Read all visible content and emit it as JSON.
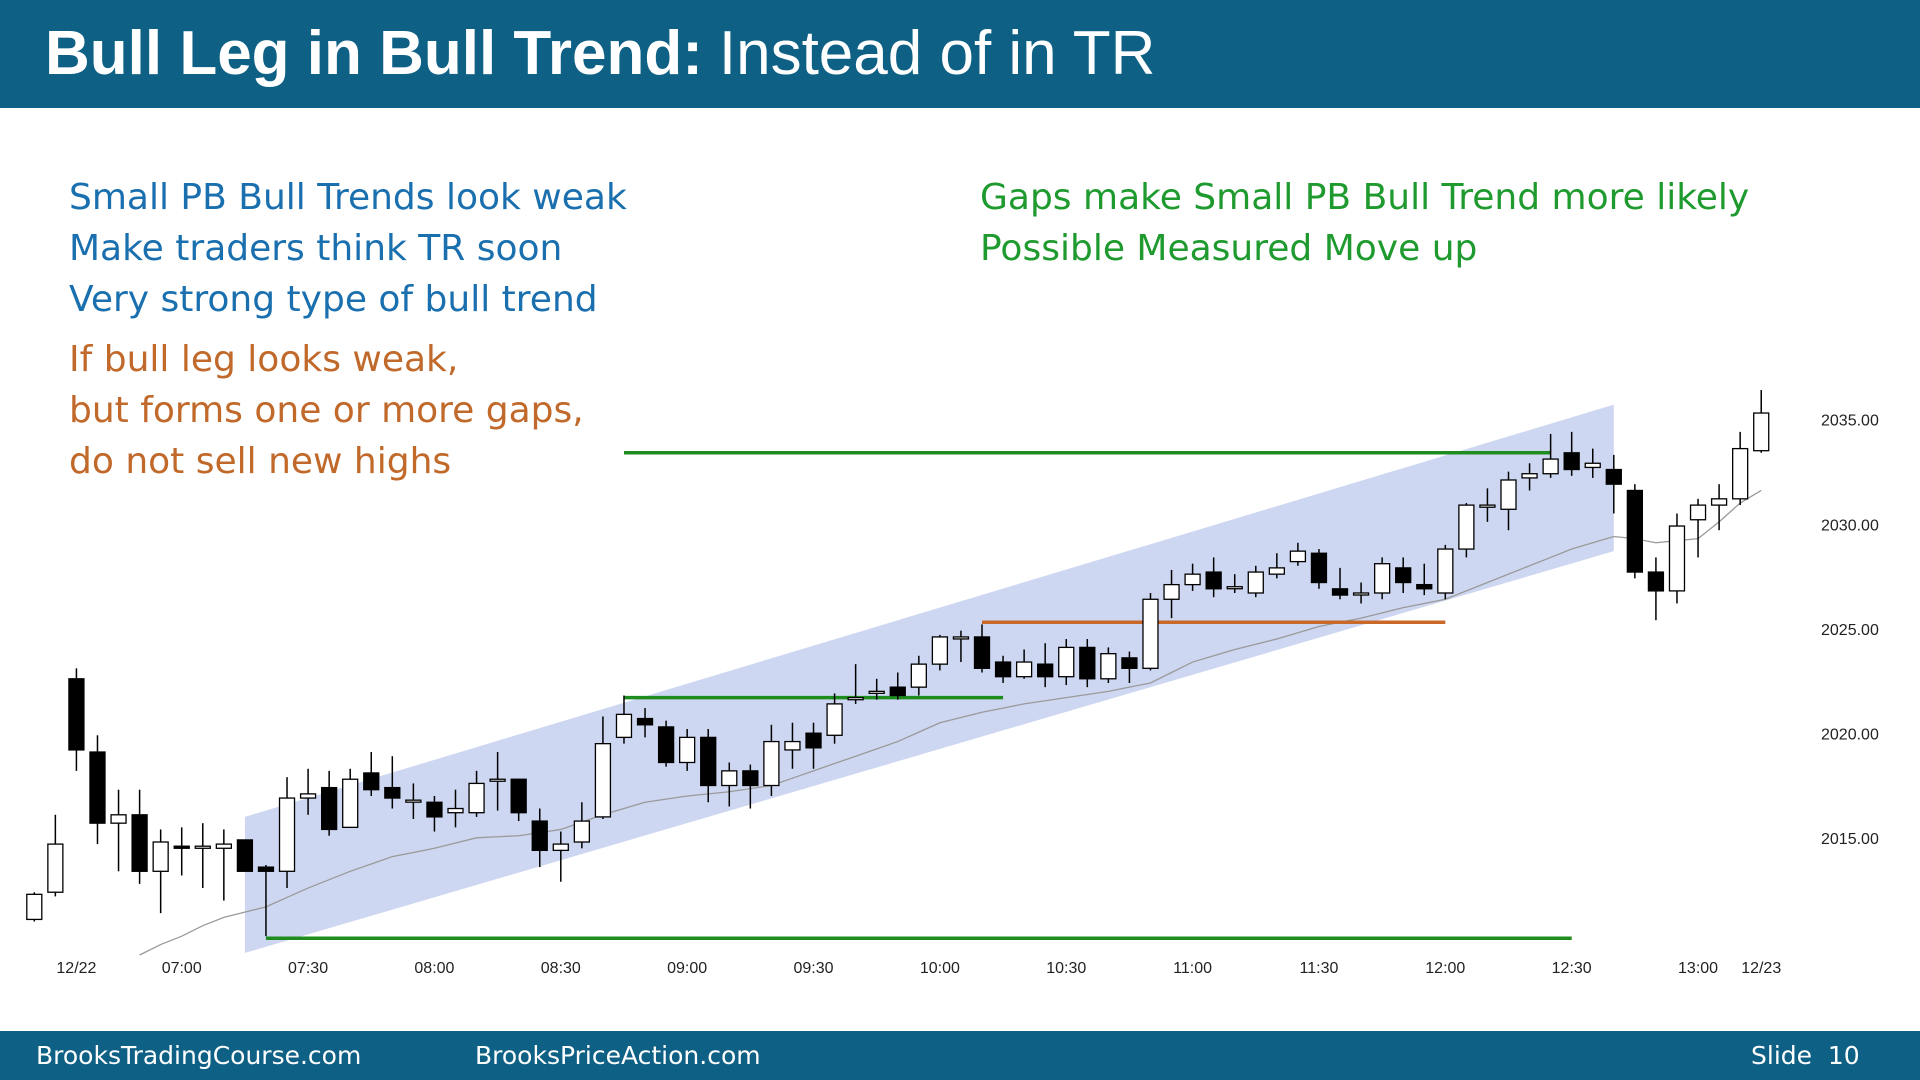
{
  "header": {
    "title_bold": "Bull Leg in Bull Trend:",
    "title_rest": "Instead of in TR"
  },
  "notes_left": [
    "Small PB Bull Trends look weak",
    "Make traders think TR soon",
    "Very strong type of bull trend"
  ],
  "notes_warning": [
    "If bull leg looks weak,",
    "but forms one or more gaps,",
    "do not sell new highs"
  ],
  "notes_right": [
    "Gaps make Small PB Bull Trend more likely",
    "Possible Measured Move up"
  ],
  "footer": {
    "left": "BrooksTradingCourse.com",
    "middle": "BrooksPriceAction.com",
    "slide": "Slide  10"
  },
  "chart_data": {
    "type": "candlestick",
    "categories": [
      null,
      null,
      "12/22",
      null,
      null,
      null,
      null,
      "07:00",
      null,
      null,
      null,
      null,
      null,
      "07:30",
      null,
      null,
      null,
      null,
      null,
      "08:00",
      null,
      null,
      null,
      null,
      null,
      "08:30",
      null,
      null,
      null,
      null,
      null,
      "09:00",
      null,
      null,
      null,
      null,
      null,
      "09:30",
      null,
      null,
      null,
      null,
      null,
      "10:00",
      null,
      null,
      null,
      null,
      null,
      "10:30",
      null,
      null,
      null,
      null,
      null,
      "11:00",
      null,
      null,
      null,
      null,
      null,
      "11:30",
      null,
      null,
      null,
      null,
      null,
      "12:00",
      null,
      null,
      null,
      null,
      null,
      "12:30",
      null,
      null,
      null,
      null,
      null,
      "13:00",
      null,
      null,
      "12/23"
    ],
    "open": [
      2011.2,
      2012.5,
      2022.7,
      2019.2,
      2015.8,
      2016.2,
      2013.5,
      2014.7,
      2014.6,
      2014.6,
      2015,
      2013.7,
      2013.5,
      2017,
      2017.5,
      2015.6,
      2018.2,
      2017.5,
      2016.9,
      2016.8,
      2016.3,
      2016.3,
      2017.9,
      2017.9,
      2015.9,
      2014.5,
      2014.9,
      2016.1,
      2019.9,
      2020.8,
      2020.4,
      2018.7,
      2019.9,
      2017.6,
      2018.3,
      2017.6,
      2019.3,
      2020.1,
      2020,
      2021.7,
      2022.1,
      2022.3,
      2022.3,
      2023.4,
      2024.7,
      2024.7,
      2023.5,
      2022.8,
      2023.4,
      2022.8,
      2024.2,
      2022.7,
      2023.7,
      2023.2,
      2026.5,
      2027.2,
      2027.8,
      2027.1,
      2026.8,
      2027.7,
      2028.3,
      2028.7,
      2027,
      2026.8,
      2026.8,
      2028,
      2027.2,
      2026.8,
      2028.9,
      2030.9,
      2030.8,
      2032.3,
      2032.5,
      2033.5,
      2032.8,
      2032.7,
      2031.7,
      2027.8,
      2026.9,
      2030.3,
      2031,
      2031.3,
      2033.6
    ],
    "high": [
      2012.5,
      2016.2,
      2023.2,
      2020,
      2017.4,
      2017.4,
      2015.5,
      2015.6,
      2015.8,
      2015.5,
      2015,
      2013.8,
      2018,
      2018.4,
      2018.3,
      2018.4,
      2019.2,
      2019,
      2017.7,
      2017.1,
      2017.4,
      2018.3,
      2019.2,
      2017.9,
      2016.5,
      2015.4,
      2016.8,
      2020.9,
      2021.9,
      2021.3,
      2020.7,
      2020.3,
      2020.3,
      2018.7,
      2018.6,
      2020.5,
      2020.6,
      2020.6,
      2022,
      2023.4,
      2022.7,
      2023,
      2023.8,
      2024.8,
      2025,
      2025.3,
      2023.8,
      2024.1,
      2024.4,
      2024.6,
      2024.6,
      2024.2,
      2024,
      2026.8,
      2027.9,
      2028.2,
      2028.5,
      2027.7,
      2028.1,
      2028.7,
      2029.2,
      2028.9,
      2028,
      2027.3,
      2028.5,
      2028.5,
      2028.2,
      2029.1,
      2031.1,
      2031.8,
      2032.6,
      2033,
      2034.4,
      2034.5,
      2033.7,
      2033.4,
      2032,
      2028.5,
      2030.6,
      2031.3,
      2032,
      2034.5,
      2036.5
    ],
    "low": [
      2011.1,
      2012.3,
      2018.3,
      2014.8,
      2013.5,
      2012.9,
      2011.5,
      2013.3,
      2012.7,
      2012.1,
      2013.5,
      2010.4,
      2012.7,
      2016.2,
      2015.2,
      2015.6,
      2017.1,
      2016.5,
      2016,
      2015.4,
      2015.6,
      2016.1,
      2016.4,
      2015.9,
      2013.7,
      2013,
      2014.6,
      2016,
      2019.6,
      2019.9,
      2018.5,
      2018.3,
      2016.8,
      2016.6,
      2016.5,
      2017.1,
      2018.4,
      2018.4,
      2019.6,
      2021.5,
      2021.7,
      2021.7,
      2021.9,
      2023.1,
      2023.5,
      2023,
      2022.5,
      2022.7,
      2022.3,
      2022.4,
      2022.3,
      2022.5,
      2022.5,
      2023.1,
      2025.6,
      2026.9,
      2026.6,
      2026.8,
      2026.6,
      2027.5,
      2028.1,
      2027,
      2026.5,
      2026.3,
      2026.5,
      2026.8,
      2026.7,
      2026.5,
      2028.5,
      2030.2,
      2029.8,
      2031.7,
      2032.3,
      2032.4,
      2032.3,
      2030.6,
      2027.5,
      2025.5,
      2026.3,
      2028.5,
      2029.8,
      2031,
      2033.5
    ],
    "close": [
      2012.4,
      2014.8,
      2019.3,
      2015.8,
      2016.2,
      2013.5,
      2014.9,
      2014.6,
      2014.7,
      2014.8,
      2013.5,
      2013.5,
      2017,
      2017.2,
      2015.5,
      2017.9,
      2017.4,
      2017,
      2016.9,
      2016.1,
      2016.5,
      2017.7,
      2017.9,
      2016.3,
      2014.5,
      2014.8,
      2015.9,
      2019.6,
      2021,
      2020.5,
      2018.7,
      2019.9,
      2017.6,
      2018.3,
      2017.6,
      2019.7,
      2019.7,
      2019.4,
      2021.5,
      2021.8,
      2022.1,
      2021.9,
      2023.4,
      2024.7,
      2024.7,
      2023.2,
      2022.8,
      2023.5,
      2022.8,
      2024.2,
      2022.7,
      2023.9,
      2023.2,
      2026.5,
      2027.2,
      2027.7,
      2027,
      2027.1,
      2027.8,
      2028,
      2028.8,
      2027.3,
      2026.7,
      2026.8,
      2028.2,
      2027.3,
      2027,
      2028.9,
      2031,
      2031,
      2032.2,
      2032.5,
      2033.2,
      2032.7,
      2033,
      2032,
      2027.8,
      2026.9,
      2030,
      2031,
      2031.3,
      2033.7,
      2035.4
    ],
    "up_color": "#ffffff",
    "down_color": "#000000",
    "ma": {
      "color": "#9a9a9a",
      "values": [
        null,
        null,
        null,
        null,
        null,
        2009.5,
        2010,
        2010.4,
        2010.9,
        2011.3,
        2011.55,
        2011.8,
        2012.25,
        2012.7,
        2013.1,
        2013.5,
        2013.85,
        2014.2,
        2014.4,
        2014.6,
        2014.85,
        2015.1,
        2015.15,
        2015.2,
        2015.35,
        2015.5,
        2015.85,
        2016.2,
        2016.5,
        2016.8,
        2016.95,
        2017.1,
        2017.2,
        2017.3,
        2017.45,
        2017.6,
        2017.95,
        2018.3,
        2018.65,
        2019,
        2019.35,
        2019.7,
        2020.15,
        2020.6,
        2020.85,
        2021.1,
        2021.3,
        2021.5,
        2021.65,
        2021.8,
        2021.95,
        2022.1,
        2022.3,
        2022.5,
        2023,
        2023.5,
        2023.8,
        2024.1,
        2024.35,
        2024.6,
        2024.9,
        2025.2,
        2025.4,
        2025.6,
        2025.85,
        2026.1,
        2026.3,
        2026.5,
        2026.9,
        2027.3,
        2027.7,
        2028.1,
        2028.5,
        2028.9,
        2029.2,
        2029.5,
        2029.4,
        2029.2,
        2029.3,
        2029.4,
        2030.2,
        2031.1,
        2031.7
      ]
    },
    "channel": {
      "start": 10,
      "end": 75,
      "upper": [
        2016.1,
        2035.8
      ],
      "lower": [
        2009.6,
        2028.8
      ],
      "color": "#c5d0f0"
    },
    "lines": [
      {
        "value": 2033.5,
        "start": 28,
        "end": 72,
        "color": "#1e8c1e"
      },
      {
        "value": 2010.3,
        "start": 11,
        "end": 73,
        "color": "#1e8c1e"
      },
      {
        "value": 2021.8,
        "start": 28,
        "end": 46,
        "color": "#1e8c1e"
      },
      {
        "value": 2025.4,
        "start": 45,
        "end": 67,
        "color": "#c8692a"
      }
    ],
    "ylim": [
      2009.5,
      2037.6
    ],
    "yticks": [
      {
        "value": 2015,
        "label": "2015.00"
      },
      {
        "value": 2020,
        "label": "2020.00"
      },
      {
        "value": 2025,
        "label": "2025.00"
      },
      {
        "value": 2030,
        "label": "2030.00"
      },
      {
        "value": 2035,
        "label": "2035.00"
      }
    ]
  }
}
